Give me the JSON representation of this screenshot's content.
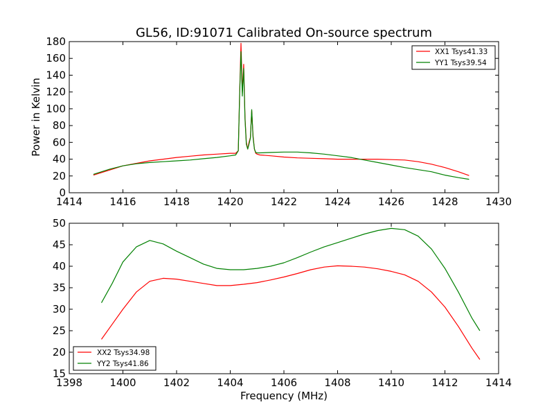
{
  "chart_data": [
    {
      "type": "line",
      "title": "GL56, ID:91071 Calibrated On-source spectrum",
      "xlabel": "",
      "ylabel": "Power in Kelvin",
      "xlim": [
        1414,
        1430
      ],
      "ylim": [
        0,
        180
      ],
      "xticks": [
        "1414",
        "1416",
        "1418",
        "1420",
        "1422",
        "1424",
        "1426",
        "1428",
        "1430"
      ],
      "yticks": [
        "0",
        "20",
        "40",
        "60",
        "80",
        "100",
        "120",
        "140",
        "160",
        "180"
      ],
      "grid": false,
      "legend_position": "top-right",
      "series": [
        {
          "name": "XX1 Tsys41.33",
          "color": "#ff0000",
          "x": [
            1414.9,
            1415.5,
            1416.0,
            1416.5,
            1417.0,
            1417.5,
            1418.0,
            1418.5,
            1419.0,
            1419.5,
            1420.0,
            1420.2,
            1420.3,
            1420.35,
            1420.4,
            1420.45,
            1420.5,
            1420.55,
            1420.6,
            1420.65,
            1420.7,
            1420.75,
            1420.8,
            1420.85,
            1420.9,
            1420.95,
            1421.0,
            1421.1,
            1421.5,
            1422.0,
            1422.5,
            1423.0,
            1423.5,
            1424.0,
            1424.5,
            1425.0,
            1425.5,
            1426.0,
            1426.5,
            1427.0,
            1427.5,
            1428.0,
            1428.5,
            1428.9
          ],
          "y": [
            21,
            27,
            32,
            35,
            38,
            40,
            42,
            43.5,
            45,
            46,
            47,
            47,
            50,
            120,
            178,
            120,
            153,
            90,
            60,
            52,
            60,
            66,
            98,
            68,
            52,
            47,
            46,
            45,
            44,
            42.5,
            41.5,
            41,
            40.5,
            40,
            40,
            40,
            40,
            39.5,
            39,
            37,
            34,
            30,
            25,
            20.5
          ]
        },
        {
          "name": "YY1 Tsys39.54",
          "color": "#008000",
          "x": [
            1414.9,
            1415.5,
            1416.0,
            1416.5,
            1417.0,
            1417.5,
            1418.0,
            1418.5,
            1419.0,
            1419.5,
            1420.0,
            1420.2,
            1420.3,
            1420.35,
            1420.4,
            1420.45,
            1420.5,
            1420.55,
            1420.6,
            1420.65,
            1420.7,
            1420.75,
            1420.8,
            1420.85,
            1420.9,
            1420.95,
            1421.0,
            1421.1,
            1421.5,
            1422.0,
            1422.5,
            1423.0,
            1423.5,
            1424.0,
            1424.5,
            1425.0,
            1425.5,
            1426.0,
            1426.5,
            1427.0,
            1427.5,
            1428.0,
            1428.5,
            1428.9
          ],
          "y": [
            22,
            28,
            32,
            34.5,
            36,
            37,
            38,
            39,
            40.5,
            42,
            44,
            45,
            50,
            118,
            168,
            115,
            148,
            88,
            58,
            52,
            58,
            65,
            99,
            66,
            52,
            48,
            47.5,
            47.5,
            48,
            48.5,
            48.5,
            47.5,
            46,
            44,
            42,
            39,
            36,
            33,
            30,
            27.5,
            25,
            21,
            18,
            16
          ]
        }
      ]
    },
    {
      "type": "line",
      "title": "",
      "xlabel": "Frequency (MHz)",
      "ylabel": "",
      "xlim": [
        1398,
        1414
      ],
      "ylim": [
        15,
        50
      ],
      "xticks": [
        "1398",
        "1400",
        "1402",
        "1404",
        "1406",
        "1408",
        "1410",
        "1412",
        "1414"
      ],
      "yticks": [
        "15",
        "20",
        "25",
        "30",
        "35",
        "40",
        "45",
        "50"
      ],
      "grid": false,
      "legend_position": "bottom-left",
      "series": [
        {
          "name": "XX2 Tsys34.98",
          "color": "#ff0000",
          "x": [
            1399.2,
            1399.6,
            1400.0,
            1400.5,
            1401.0,
            1401.5,
            1402.0,
            1402.5,
            1403.0,
            1403.5,
            1404.0,
            1404.5,
            1405.0,
            1405.5,
            1406.0,
            1406.5,
            1407.0,
            1407.5,
            1408.0,
            1408.5,
            1409.0,
            1409.5,
            1410.0,
            1410.5,
            1411.0,
            1411.5,
            1412.0,
            1412.5,
            1413.0,
            1413.3
          ],
          "y": [
            23,
            26.5,
            30,
            34,
            36.5,
            37.2,
            37,
            36.5,
            36,
            35.5,
            35.5,
            35.8,
            36.2,
            36.8,
            37.5,
            38.3,
            39.2,
            39.8,
            40.1,
            40,
            39.8,
            39.4,
            38.8,
            38,
            36.5,
            34,
            30.5,
            26,
            21,
            18.3
          ]
        },
        {
          "name": "YY2 Tsys41.86",
          "color": "#008000",
          "x": [
            1399.2,
            1399.6,
            1400.0,
            1400.5,
            1401.0,
            1401.5,
            1402.0,
            1402.5,
            1403.0,
            1403.5,
            1404.0,
            1404.5,
            1405.0,
            1405.5,
            1406.0,
            1406.5,
            1407.0,
            1407.5,
            1408.0,
            1408.5,
            1409.0,
            1409.5,
            1410.0,
            1410.5,
            1411.0,
            1411.5,
            1412.0,
            1412.5,
            1413.0,
            1413.3
          ],
          "y": [
            31.5,
            36,
            41,
            44.5,
            46,
            45.2,
            43.5,
            42,
            40.5,
            39.5,
            39.2,
            39.2,
            39.5,
            40,
            40.8,
            42,
            43.3,
            44.5,
            45.5,
            46.5,
            47.5,
            48.3,
            48.8,
            48.5,
            47,
            44,
            39.5,
            34,
            28,
            25
          ]
        }
      ]
    }
  ]
}
